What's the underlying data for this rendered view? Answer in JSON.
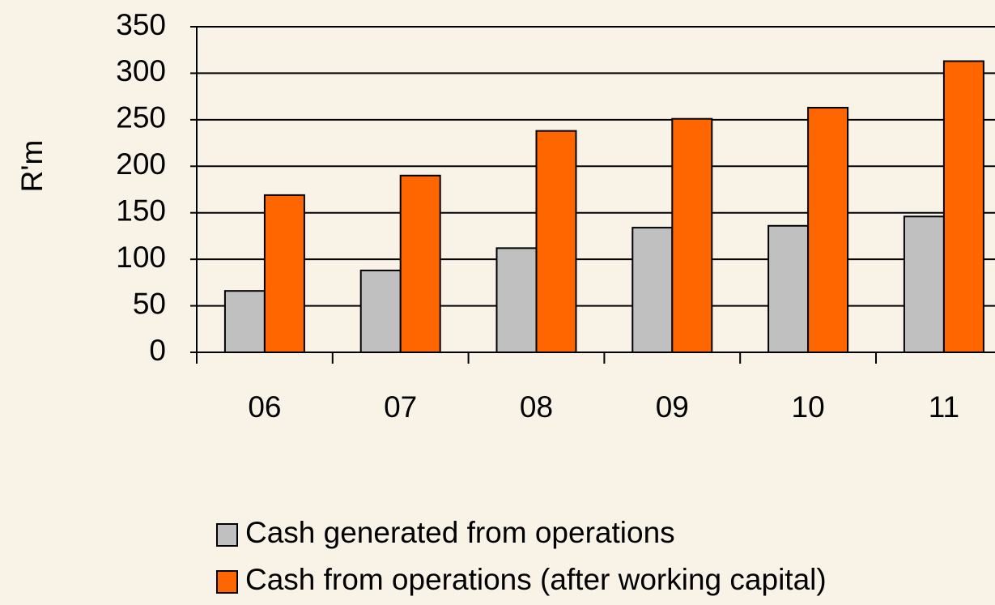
{
  "chart_data": {
    "type": "bar",
    "ylabel": "R'm",
    "categories": [
      "06",
      "07",
      "08",
      "09",
      "10",
      "11"
    ],
    "series": [
      {
        "name": "Cash generated from operations",
        "color": "#c0c0c0",
        "values": [
          66,
          88,
          112,
          134,
          136,
          146
        ]
      },
      {
        "name": "Cash from operations (after working capital)",
        "color": "#ff6600",
        "values": [
          169,
          190,
          238,
          251,
          263,
          313
        ]
      }
    ],
    "ylim": [
      0,
      350
    ],
    "yticks": [
      0,
      50,
      100,
      150,
      200,
      250,
      300,
      350
    ],
    "grid": true,
    "legend": "bottom"
  }
}
